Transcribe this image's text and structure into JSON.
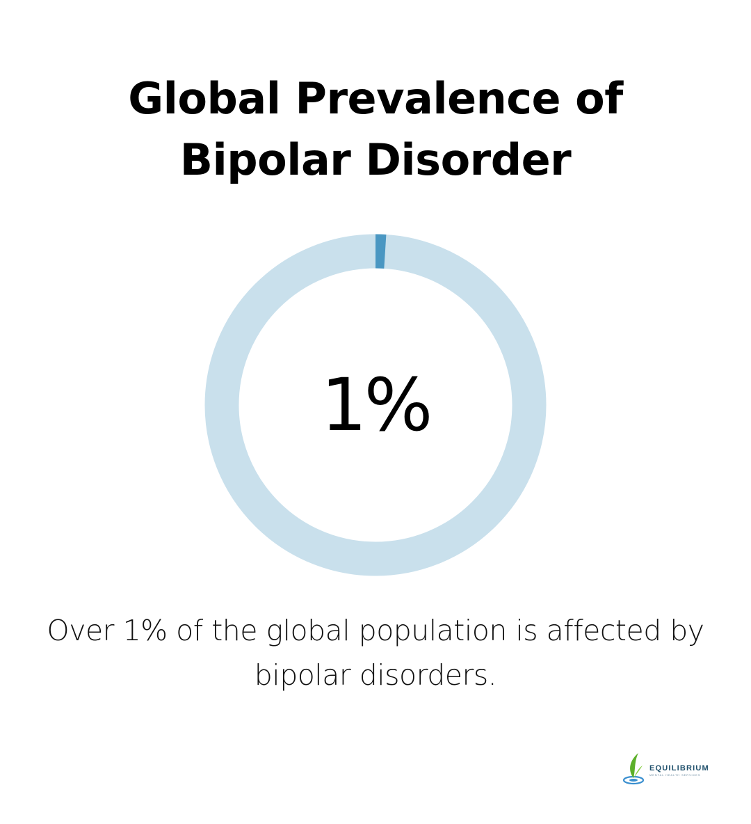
{
  "title": "Global Prevalence of Bipolar Disorder",
  "chart_data": {
    "type": "pie",
    "variant": "donut",
    "value_percent": 1,
    "center_label": "1%",
    "slices": [
      {
        "label": "",
        "value": 1,
        "color": "#4a97c2"
      },
      {
        "label": "",
        "value": 99,
        "color": "#c9e0ec"
      }
    ]
  },
  "caption": "Over 1% of the global population is affected by bipolar disorders.",
  "logo": {
    "name": "EQUILIBRIUM",
    "tagline": "MENTAL HEALTH SERVICES",
    "colors": {
      "leaf": "#5cb02a",
      "water": "#3a8fcf"
    }
  },
  "colors": {
    "accent": "#4a97c2",
    "track": "#c9e0ec",
    "text": "#000000"
  }
}
